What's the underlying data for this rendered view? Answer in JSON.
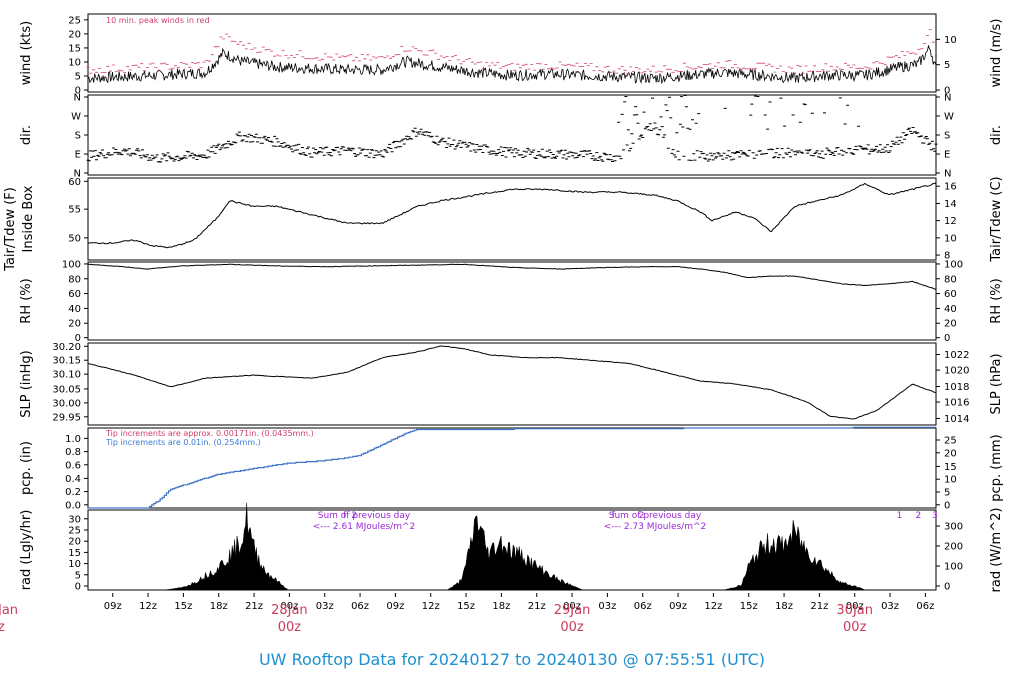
{
  "title": "UW Rooftop Data for 20240127  to  20240130 @ 07:55:51  (UTC)",
  "colors": {
    "title": "#1e90d0",
    "date": "#c83c5a",
    "note_red": "#d2406a",
    "note_blue": "#3c7ad2",
    "purple": "#9d28d8",
    "pcp": "#3f73c8",
    "axis": "#000000"
  },
  "x_axis": {
    "ticks": [
      "09z",
      "12z",
      "15z",
      "18z",
      "21z",
      "00z",
      "03z",
      "06z",
      "09z",
      "12z",
      "15z",
      "18z",
      "21z",
      "00z",
      "03z",
      "06z",
      "09z",
      "12z",
      "15z",
      "18z",
      "21z",
      "00z",
      "03z",
      "06z"
    ],
    "dates": [
      {
        "day": "28Jan",
        "hour": "00z"
      },
      {
        "day": "29Jan",
        "hour": "00z"
      },
      {
        "day": "30Jan",
        "hour": "00z"
      }
    ],
    "left_date_fragment": {
      "day": "Jan",
      "hour": "z"
    }
  },
  "panels": [
    {
      "id": "wind",
      "ylabel_left": "wind (kts)",
      "ylabel_right": "wind (m/s)",
      "left_ticks": [
        "0",
        "5",
        "10",
        "15",
        "20",
        "25"
      ],
      "right_ticks": [
        "0",
        "5",
        "10"
      ],
      "note": "10 min. peak winds in red"
    },
    {
      "id": "dir",
      "ylabel_left": "dir.",
      "ylabel_right": "dir.",
      "left_ticks": [
        "N",
        "E",
        "S",
        "W",
        "N"
      ],
      "right_ticks": [
        "N",
        "E",
        "S",
        "W",
        "N"
      ]
    },
    {
      "id": "temp",
      "ylabel_left": "Tair/Tdew (F)",
      "ylabel_left2": "Inside Box",
      "ylabel_right": "Tair/Tdew (C)",
      "left_ticks": [
        "50",
        "55",
        "60"
      ],
      "right_ticks": [
        "8",
        "10",
        "12",
        "14",
        "16"
      ]
    },
    {
      "id": "rh",
      "ylabel_left": "RH (%)",
      "ylabel_right": "RH (%)",
      "left_ticks": [
        "0",
        "20",
        "40",
        "60",
        "80",
        "100"
      ],
      "right_ticks": [
        "0",
        "20",
        "40",
        "60",
        "80",
        "100"
      ]
    },
    {
      "id": "slp",
      "ylabel_left": "SLP (inHg)",
      "ylabel_right": "SLP (hPa)",
      "left_ticks": [
        "29.95",
        "30.00",
        "30.05",
        "30.10",
        "30.15",
        "30.20"
      ],
      "right_ticks": [
        "1014",
        "1016",
        "1018",
        "1020",
        "1022"
      ]
    },
    {
      "id": "pcp",
      "ylabel_left": "pcp. (in)",
      "ylabel_right": "pcp. (mm)",
      "left_ticks": [
        "0.0",
        "0.2",
        "0.4",
        "0.6",
        "0.8",
        "1.0"
      ],
      "right_ticks": [
        "0",
        "5",
        "10",
        "15",
        "20",
        "25"
      ],
      "note1": "Tip increments are approx. 0.00171in. (0.0435mm.)",
      "note2": "Tip increments are 0.01in. (0.254mm.)"
    },
    {
      "id": "rad",
      "ylabel_left": "rad (Lgly/hr)",
      "ylabel_right": "rad (W/m^2)",
      "left_ticks": [
        "0",
        "5",
        "10",
        "15",
        "20",
        "25",
        "30"
      ],
      "right_ticks": [
        "0",
        "100",
        "200",
        "300"
      ],
      "sum_notes": [
        {
          "line1": "Sum of previous day",
          "line2": "<--- 2.61 MJoules/m^2"
        },
        {
          "line1": "Sum of previous day",
          "line2": "<--- 2.73 MJoules/m^2"
        }
      ],
      "markers": [
        {
          "hour": 21.8,
          "text": "f"
        },
        {
          "hour": 22.6,
          "text": "2"
        },
        {
          "hour": 44.6,
          "text": "f"
        },
        {
          "hour": 47.0,
          "text": "2"
        },
        {
          "hour": 68.9,
          "text": "1"
        },
        {
          "hour": 70.5,
          "text": "2"
        },
        {
          "hour": 71.9,
          "text": "3"
        }
      ]
    }
  ],
  "chart_data": {
    "type": "line",
    "x_unit": "hours from 2024-01-27 07:56 UTC",
    "x_range": [
      0,
      72
    ],
    "series": [
      {
        "name": "wind",
        "unit": "kts",
        "ylim": [
          0,
          28
        ],
        "x": [
          0,
          6,
          10,
          11.5,
          13,
          16,
          19,
          22,
          25,
          27,
          30,
          33,
          36,
          39,
          42,
          45,
          48,
          51,
          54,
          57,
          60,
          63,
          66,
          69,
          70.5,
          71.5,
          72
        ],
        "y": [
          5,
          6,
          7,
          14,
          11,
          9,
          8.5,
          8,
          8,
          11,
          9,
          7,
          6,
          6.5,
          6,
          5.5,
          5,
          6,
          7,
          6,
          5,
          6,
          6,
          9,
          10,
          16,
          8
        ]
      },
      {
        "name": "wind 10 min. peak",
        "unit": "kts",
        "ylim": [
          0,
          28
        ],
        "x": [
          0,
          6,
          10,
          11.5,
          13,
          16,
          19,
          22,
          25,
          27,
          30,
          33,
          36,
          39,
          42,
          45,
          48,
          51,
          54,
          57,
          60,
          63,
          66,
          69,
          70.5,
          71.5,
          72
        ],
        "y": [
          8,
          9,
          10,
          20,
          17,
          14,
          13,
          12,
          12,
          16,
          13,
          10,
          9,
          9.5,
          9,
          8,
          8,
          9,
          10,
          9,
          8,
          9,
          9,
          13,
          15,
          22,
          12
        ]
      },
      {
        "name": "dir",
        "unit": "deg",
        "ylim": [
          0,
          360
        ],
        "x": [
          0,
          3,
          6,
          10,
          13,
          16,
          19,
          22,
          25,
          28,
          30,
          33,
          36,
          39,
          42,
          45,
          48,
          50,
          53,
          56,
          59,
          62,
          65,
          68,
          70,
          72
        ],
        "y": [
          85,
          110,
          75,
          90,
          175,
          150,
          100,
          110,
          95,
          200,
          150,
          120,
          100,
          95,
          90,
          80,
          230,
          90,
          85,
          90,
          100,
          95,
          110,
          120,
          200,
          120
        ]
      },
      {
        "name": "Tair",
        "unit": "F",
        "ylim": [
          46.5,
          61
        ],
        "x": [
          0,
          2,
          4,
          5.5,
          7,
          9,
          10,
          11,
          12,
          14,
          16,
          19,
          22,
          25,
          28,
          30,
          33,
          36,
          39,
          42,
          45,
          48,
          50,
          52,
          53,
          55,
          56.5,
          58,
          60,
          62,
          64,
          66,
          68,
          70,
          72
        ],
        "y": [
          49.5,
          49.5,
          50,
          49,
          48.7,
          50,
          52,
          54,
          57,
          56,
          56,
          54.5,
          53,
          53,
          56,
          57,
          58,
          59,
          59,
          58.5,
          58.5,
          58,
          57,
          55,
          53.5,
          55,
          54,
          51.5,
          56,
          57,
          58,
          60,
          58,
          59,
          60
        ]
      },
      {
        "name": "RH",
        "unit": "%",
        "ylim": [
          0,
          100
        ],
        "x": [
          0,
          3,
          5,
          8,
          12,
          16,
          20,
          24,
          28,
          32,
          36,
          40,
          44,
          48,
          50,
          52,
          54,
          56,
          58,
          60,
          62,
          64,
          66,
          68,
          70,
          72
        ],
        "y": [
          97,
          94,
          91,
          95,
          97,
          95,
          94,
          95,
          96,
          97,
          93,
          91,
          93,
          94,
          94,
          91,
          87,
          80,
          82,
          82,
          77,
          72,
          70,
          72,
          75,
          65
        ]
      },
      {
        "name": "SLP",
        "unit": "inHg",
        "ylim": [
          29.93,
          30.21
        ],
        "x": [
          0,
          4,
          7,
          10,
          14,
          19,
          22,
          25,
          28,
          30,
          32,
          34,
          37,
          40,
          43,
          46,
          49,
          52,
          55,
          58,
          61,
          63,
          65,
          67,
          70,
          72
        ],
        "y": [
          30.14,
          30.1,
          30.06,
          30.09,
          30.1,
          30.09,
          30.11,
          30.16,
          30.18,
          30.2,
          30.19,
          30.17,
          30.16,
          30.16,
          30.15,
          30.14,
          30.11,
          30.08,
          30.07,
          30.05,
          30.01,
          29.96,
          29.95,
          29.98,
          30.07,
          30.04
        ]
      },
      {
        "name": "pcp",
        "unit": "in",
        "ylim": [
          0,
          1.07
        ],
        "x": [
          0,
          5,
          6,
          7,
          9,
          11,
          13,
          15,
          17,
          19,
          21,
          23,
          25,
          27,
          28,
          29,
          72
        ],
        "y": [
          0,
          0,
          0.1,
          0.25,
          0.35,
          0.45,
          0.5,
          0.55,
          0.6,
          0.62,
          0.65,
          0.7,
          0.85,
          1.0,
          1.05,
          1.05,
          1.08
        ]
      },
      {
        "name": "rad",
        "unit": "Lgly/hr",
        "ylim": [
          0,
          33
        ],
        "x": [
          0,
          6.5,
          8,
          9,
          10,
          11,
          12,
          13,
          13.5,
          14,
          15,
          16.5,
          17,
          30.5,
          31.5,
          32,
          33,
          34,
          35,
          36,
          37,
          38,
          39,
          40,
          41,
          41.5,
          42,
          54,
          55.5,
          56,
          57,
          58,
          59,
          60,
          61,
          62,
          63,
          64,
          65.5,
          66,
          72
        ],
        "y": [
          0,
          0,
          1,
          3,
          6,
          9,
          14,
          20,
          30,
          18,
          8,
          2,
          0,
          0,
          3,
          8,
          30,
          15,
          20,
          16,
          14,
          10,
          7,
          4,
          2,
          1,
          0,
          0,
          2,
          9,
          16,
          20,
          18,
          24,
          16,
          12,
          7,
          3,
          1,
          0,
          0
        ]
      }
    ]
  }
}
